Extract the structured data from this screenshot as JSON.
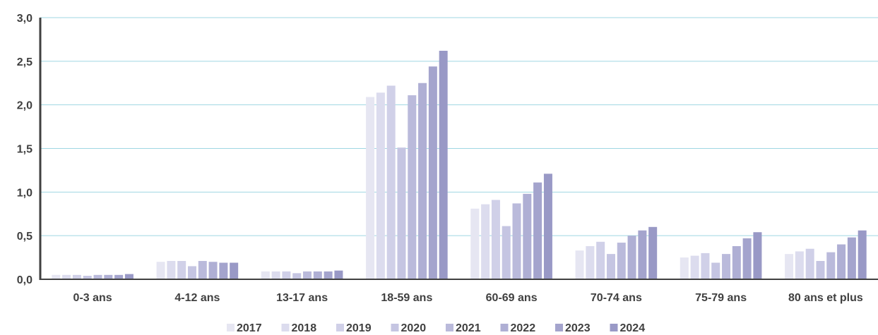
{
  "chart_data": {
    "type": "bar",
    "categories": [
      "0-3 ans",
      "4-12 ans",
      "13-17 ans",
      "18-59 ans",
      "60-69 ans",
      "70-74 ans",
      "75-79 ans",
      "80 ans et plus"
    ],
    "series": [
      {
        "name": "2017",
        "color": "#e6e6f2",
        "values": [
          0.05,
          0.2,
          0.09,
          2.09,
          0.81,
          0.33,
          0.25,
          0.29
        ]
      },
      {
        "name": "2018",
        "color": "#dcdcee",
        "values": [
          0.05,
          0.21,
          0.09,
          2.14,
          0.86,
          0.38,
          0.27,
          0.32
        ]
      },
      {
        "name": "2019",
        "color": "#d0d0e8",
        "values": [
          0.05,
          0.21,
          0.09,
          2.22,
          0.91,
          0.43,
          0.3,
          0.35
        ]
      },
      {
        "name": "2020",
        "color": "#c5c5e2",
        "values": [
          0.04,
          0.15,
          0.07,
          1.51,
          0.61,
          0.29,
          0.19,
          0.21
        ]
      },
      {
        "name": "2021",
        "color": "#babadb",
        "values": [
          0.05,
          0.21,
          0.09,
          2.11,
          0.87,
          0.42,
          0.29,
          0.31
        ]
      },
      {
        "name": "2022",
        "color": "#afafd4",
        "values": [
          0.05,
          0.2,
          0.09,
          2.25,
          0.98,
          0.5,
          0.38,
          0.4
        ]
      },
      {
        "name": "2023",
        "color": "#a4a4cd",
        "values": [
          0.05,
          0.19,
          0.09,
          2.44,
          1.11,
          0.56,
          0.47,
          0.48
        ]
      },
      {
        "name": "2024",
        "color": "#9999c6",
        "values": [
          0.06,
          0.19,
          0.1,
          2.62,
          1.21,
          0.6,
          0.54,
          0.56
        ]
      }
    ],
    "ylim": [
      0,
      3.0
    ],
    "yticks": [
      "0,0",
      "0,5",
      "1,0",
      "1,5",
      "2,0",
      "2,5",
      "3,0"
    ],
    "ytick_values": [
      0,
      0.5,
      1.0,
      1.5,
      2.0,
      2.5,
      3.0
    ],
    "grid": true,
    "gridline_color": "#9fd7e3",
    "legend_position": "bottom",
    "title": "",
    "xlabel": "",
    "ylabel": ""
  }
}
